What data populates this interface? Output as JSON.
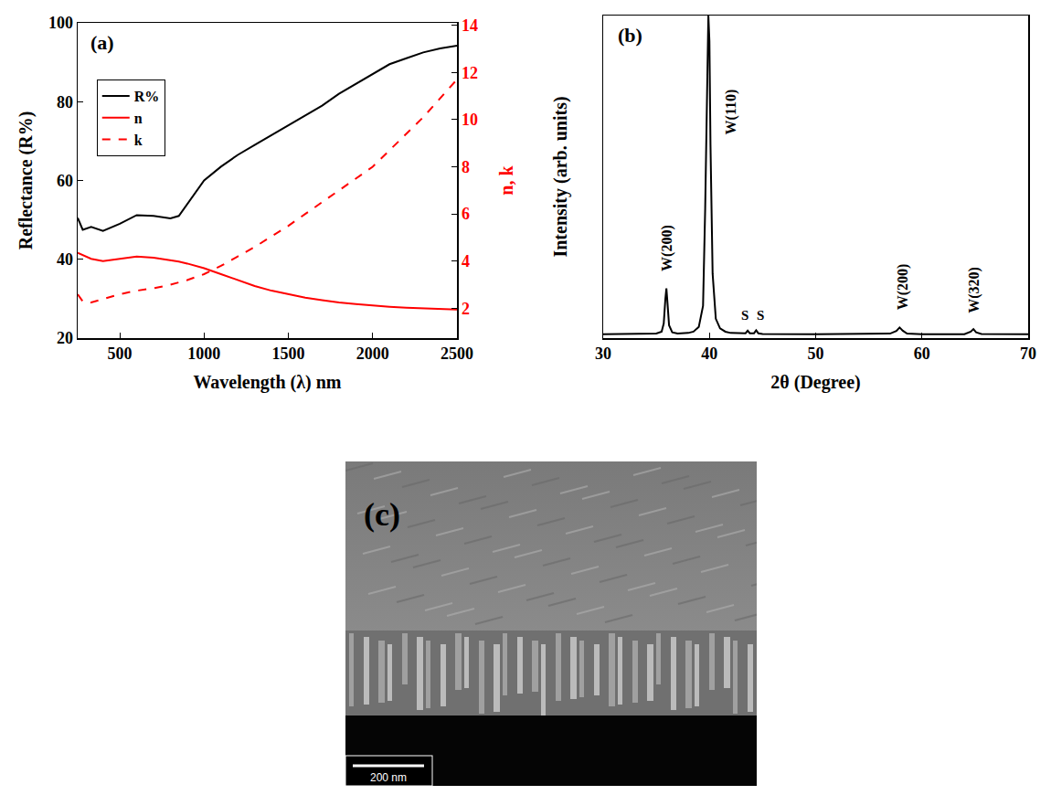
{
  "chart_data": [
    {
      "type": "line",
      "title": "(a)",
      "x_label": "Wavelength (λ) nm",
      "y_label": "Reflectance (R%)",
      "y2_label": "n, k",
      "x": [
        250,
        280,
        330,
        400,
        500,
        600,
        700,
        800,
        850,
        900,
        1000,
        1100,
        1200,
        1300,
        1400,
        1500,
        1600,
        1700,
        1800,
        1900,
        2000,
        2100,
        2200,
        2300,
        2400,
        2500
      ],
      "xlim": [
        250,
        2500
      ],
      "xticks": [
        500,
        1000,
        1500,
        2000,
        2500
      ],
      "ylim": [
        20,
        100
      ],
      "yticks": [
        20,
        40,
        60,
        80,
        100
      ],
      "y2lim": [
        0.74,
        14.1
      ],
      "y2ticks": [
        2,
        4,
        6,
        8,
        10,
        12,
        14
      ],
      "grid": false,
      "legend": "upper left",
      "series": [
        {
          "name": "R%",
          "color": "#000000",
          "line_style": "solid",
          "values": [
            50.5,
            47.5,
            48.2,
            47.2,
            49,
            51.2,
            51,
            50.4,
            51,
            54,
            60,
            63.5,
            66.5,
            69,
            71.5,
            74,
            76.5,
            79,
            82,
            84.5,
            87,
            89.5,
            91,
            92.5,
            93.5,
            94.2
          ]
        },
        {
          "name": "n",
          "color": "#ff0000",
          "line_style": "solid",
          "axis": "y2",
          "values": [
            4.35,
            4.25,
            4.1,
            4.0,
            4.1,
            4.2,
            4.15,
            4.05,
            3.98,
            3.9,
            3.7,
            3.45,
            3.2,
            2.95,
            2.75,
            2.6,
            2.45,
            2.35,
            2.25,
            2.18,
            2.12,
            2.07,
            2.03,
            2.0,
            1.97,
            1.95
          ]
        },
        {
          "name": "k",
          "color": "#ff0000",
          "line_style": "dash",
          "axis": "y2",
          "values": [
            2.6,
            2.3,
            2.25,
            2.4,
            2.6,
            2.75,
            2.85,
            3.0,
            3.1,
            3.2,
            3.45,
            3.8,
            4.2,
            4.6,
            5.05,
            5.5,
            6.0,
            6.5,
            7.0,
            7.5,
            8.0,
            8.7,
            9.4,
            10.1,
            10.9,
            11.7
          ]
        }
      ]
    },
    {
      "type": "line",
      "title": "(b)",
      "x_label": "2θ (Degree)",
      "y_label": "Intensity (arb. units)",
      "x": [
        30,
        32,
        34,
        35,
        35.5,
        35.7,
        35.85,
        35.95,
        36.05,
        36.2,
        36.5,
        37,
        38,
        38.5,
        39,
        39.4,
        39.6,
        39.8,
        39.9,
        40.0,
        40.1,
        40.3,
        40.6,
        41,
        41.5,
        42,
        43,
        43.4,
        43.6,
        43.8,
        44.2,
        44.4,
        44.6,
        45,
        50,
        55,
        57,
        57.6,
        57.9,
        58.2,
        58.6,
        60,
        64,
        64.6,
        64.85,
        65.1,
        65.6,
        70
      ],
      "values": [
        1.2,
        1.2,
        1.3,
        1.4,
        2,
        4.5,
        12,
        15.4,
        11,
        4,
        1.8,
        1.4,
        1.6,
        2,
        3.5,
        10,
        40,
        85,
        100,
        92,
        60,
        20,
        6,
        3,
        2,
        1.6,
        1.4,
        1.5,
        2.3,
        1.5,
        1.5,
        2.4,
        1.5,
        1.3,
        1.2,
        1.2,
        1.4,
        2.2,
        3.3,
        2.3,
        1.4,
        1.2,
        1.2,
        2.0,
        2.8,
        1.8,
        1.3,
        1.2
      ],
      "color": "#000000",
      "xlim": [
        30,
        70
      ],
      "xticks": [
        30,
        40,
        50,
        60,
        70
      ],
      "ylim": [
        0,
        100
      ],
      "tick_labels": "x",
      "grid": false,
      "annotations": [
        {
          "text": "W(200)",
          "x": 36.0,
          "y": 28
        },
        {
          "text": "W(110)",
          "x": 42.0,
          "y": 70
        },
        {
          "text": "S",
          "x": 43.3,
          "y": 7
        },
        {
          "text": "S",
          "x": 44.8,
          "y": 7
        },
        {
          "text": "W(200)",
          "x": 58.2,
          "y": 16
        },
        {
          "text": "W(320)",
          "x": 64.9,
          "y": 15
        }
      ]
    }
  ],
  "image": {
    "title": "(c)",
    "scale_bar": "200 nm"
  }
}
